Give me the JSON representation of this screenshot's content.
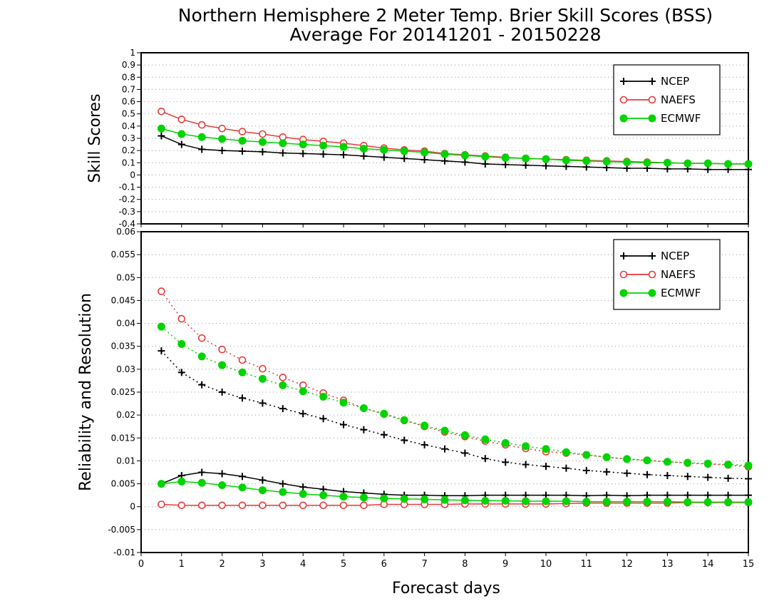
{
  "title_line1": "Northern Hemisphere 2 Meter Temp. Brier Skill Scores (BSS)",
  "title_line2": "Average For 20141201 - 20150228",
  "colors": {
    "NCEP": "#000000",
    "NAEFS": "#e83a3a",
    "ECMWF": "#00d400",
    "grid": "#9a9a9a"
  },
  "chart_data": [
    {
      "type": "line",
      "panel": "top",
      "ylabel": "Skill Scores",
      "xlabel": "",
      "xlim": [
        0,
        15
      ],
      "ylim": [
        -0.4,
        1
      ],
      "xticks": [
        0,
        1,
        2,
        3,
        4,
        5,
        6,
        7,
        8,
        9,
        10,
        11,
        12,
        13,
        14,
        15
      ],
      "yticks": [
        -0.4,
        -0.3,
        -0.2,
        -0.1,
        0,
        0.1,
        0.2,
        0.3,
        0.4,
        0.5,
        0.6,
        0.7,
        0.8,
        0.9,
        1
      ],
      "ytick_labels": [
        "-0.4",
        "-0.3",
        "-0.2",
        "-0.1",
        "0",
        "0.1",
        "0.2",
        "0.3",
        "0.4",
        "0.5",
        "0.6",
        "0.7",
        "0.8",
        "0.9",
        "1"
      ],
      "grid": "horizontal dotted",
      "legend_position": "top-right",
      "x": [
        0.5,
        1,
        1.5,
        2,
        2.5,
        3,
        3.5,
        4,
        4.5,
        5,
        5.5,
        6,
        6.5,
        7,
        7.5,
        8,
        8.5,
        9,
        9.5,
        10,
        10.5,
        11,
        11.5,
        12,
        12.5,
        13,
        13.5,
        14,
        14.5,
        15
      ],
      "series": [
        {
          "name": "NCEP",
          "marker": "plus",
          "line": "solid",
          "values": [
            0.32,
            0.25,
            0.21,
            0.2,
            0.195,
            0.19,
            0.18,
            0.175,
            0.17,
            0.165,
            0.155,
            0.145,
            0.135,
            0.125,
            0.115,
            0.105,
            0.09,
            0.085,
            0.08,
            0.075,
            0.07,
            0.065,
            0.06,
            0.055,
            0.055,
            0.05,
            0.05,
            0.045,
            0.045,
            0.045
          ]
        },
        {
          "name": "NAEFS",
          "marker": "open-circle",
          "line": "solid",
          "values": [
            0.52,
            0.455,
            0.41,
            0.38,
            0.355,
            0.335,
            0.31,
            0.29,
            0.275,
            0.26,
            0.24,
            0.22,
            0.205,
            0.195,
            0.175,
            0.165,
            0.155,
            0.145,
            0.135,
            0.13,
            0.125,
            0.12,
            0.115,
            0.11,
            0.105,
            0.1,
            0.095,
            0.095,
            0.09,
            0.09
          ]
        },
        {
          "name": "ECMWF",
          "marker": "filled-circle",
          "line": "solid",
          "values": [
            0.38,
            0.335,
            0.31,
            0.295,
            0.28,
            0.27,
            0.26,
            0.25,
            0.24,
            0.23,
            0.215,
            0.205,
            0.195,
            0.185,
            0.17,
            0.16,
            0.15,
            0.14,
            0.135,
            0.13,
            0.12,
            0.115,
            0.11,
            0.105,
            0.1,
            0.1,
            0.095,
            0.095,
            0.09,
            0.09
          ]
        }
      ]
    },
    {
      "type": "line",
      "panel": "bottom",
      "ylabel": "Reliability and Resolution",
      "xlabel": "Forecast days",
      "xlim": [
        0,
        15
      ],
      "ylim": [
        -0.01,
        0.06
      ],
      "xticks": [
        0,
        1,
        2,
        3,
        4,
        5,
        6,
        7,
        8,
        9,
        10,
        11,
        12,
        13,
        14,
        15
      ],
      "yticks": [
        -0.01,
        -0.005,
        0,
        0.005,
        0.01,
        0.015,
        0.02,
        0.025,
        0.03,
        0.035,
        0.04,
        0.045,
        0.05,
        0.055,
        0.06
      ],
      "ytick_labels": [
        "-0.01",
        "-0.005",
        "0",
        "0.005",
        "0.01",
        "0.015",
        "0.02",
        "0.025",
        "0.03",
        "0.035",
        "0.04",
        "0.045",
        "0.05",
        "0.055",
        "0.06"
      ],
      "grid": "horizontal dotted",
      "legend_position": "top-right",
      "x": [
        0.5,
        1,
        1.5,
        2,
        2.5,
        3,
        3.5,
        4,
        4.5,
        5,
        5.5,
        6,
        6.5,
        7,
        7.5,
        8,
        8.5,
        9,
        9.5,
        10,
        10.5,
        11,
        11.5,
        12,
        12.5,
        13,
        13.5,
        14,
        14.5,
        15
      ],
      "series": [
        {
          "name": "NCEP",
          "marker": "plus",
          "line": "solid",
          "legend": true,
          "values": [
            0.005,
            0.0068,
            0.0075,
            0.0072,
            0.0066,
            0.0058,
            0.005,
            0.0043,
            0.0038,
            0.0033,
            0.003,
            0.0027,
            0.0025,
            0.0025,
            0.0024,
            0.0024,
            0.0025,
            0.0025,
            0.0025,
            0.0025,
            0.0025,
            0.0024,
            0.0025,
            0.0024,
            0.0025,
            0.0025,
            0.0025,
            0.0025,
            0.0025,
            0.0025
          ]
        },
        {
          "name": "NAEFS",
          "marker": "open-circle",
          "line": "solid",
          "legend": true,
          "values": [
            0.0005,
            0.0003,
            0.0003,
            0.0003,
            0.0003,
            0.0003,
            0.0003,
            0.0003,
            0.0003,
            0.0003,
            0.0003,
            0.0005,
            0.0005,
            0.0005,
            0.0005,
            0.0006,
            0.0006,
            0.0006,
            0.0006,
            0.0006,
            0.0007,
            0.0008,
            0.0008,
            0.0008,
            0.0008,
            0.0008,
            0.0009,
            0.0009,
            0.0009,
            0.0009
          ]
        },
        {
          "name": "ECMWF",
          "marker": "filled-circle",
          "line": "solid",
          "legend": true,
          "values": [
            0.005,
            0.0055,
            0.0052,
            0.0047,
            0.0042,
            0.0036,
            0.0032,
            0.0028,
            0.0025,
            0.0022,
            0.002,
            0.0018,
            0.0017,
            0.0016,
            0.0015,
            0.0014,
            0.0013,
            0.0013,
            0.0012,
            0.0012,
            0.0012,
            0.0011,
            0.0011,
            0.0011,
            0.0011,
            0.0011,
            0.001,
            0.001,
            0.001,
            0.001
          ]
        },
        {
          "name": "NCEP",
          "marker": "plus",
          "line": "dotted",
          "legend": false,
          "values": [
            0.034,
            0.0293,
            0.0266,
            0.025,
            0.0237,
            0.0226,
            0.0214,
            0.0203,
            0.0192,
            0.0179,
            0.0168,
            0.0157,
            0.0145,
            0.0135,
            0.0126,
            0.0117,
            0.0105,
            0.0097,
            0.0092,
            0.0088,
            0.0084,
            0.0079,
            0.0076,
            0.0073,
            0.007,
            0.0068,
            0.0066,
            0.0064,
            0.0062,
            0.0061
          ]
        },
        {
          "name": "NAEFS",
          "marker": "open-circle",
          "line": "dotted",
          "legend": false,
          "values": [
            0.047,
            0.041,
            0.0368,
            0.0343,
            0.032,
            0.0301,
            0.0282,
            0.0265,
            0.0248,
            0.0232,
            0.0215,
            0.0202,
            0.0188,
            0.0175,
            0.0163,
            0.0153,
            0.0143,
            0.0135,
            0.0127,
            0.012,
            0.0117,
            0.0113,
            0.0108,
            0.0104,
            0.0101,
            0.0098,
            0.0095,
            0.0093,
            0.0091,
            0.0087
          ]
        },
        {
          "name": "ECMWF",
          "marker": "filled-circle",
          "line": "dotted",
          "legend": false,
          "values": [
            0.0393,
            0.0355,
            0.0328,
            0.0309,
            0.0293,
            0.0279,
            0.0265,
            0.0252,
            0.024,
            0.0227,
            0.0215,
            0.0203,
            0.0189,
            0.0177,
            0.0166,
            0.0156,
            0.0147,
            0.0139,
            0.0132,
            0.0126,
            0.0119,
            0.0113,
            0.0108,
            0.0104,
            0.0101,
            0.0098,
            0.0096,
            0.0094,
            0.0092,
            0.009
          ]
        }
      ]
    }
  ]
}
